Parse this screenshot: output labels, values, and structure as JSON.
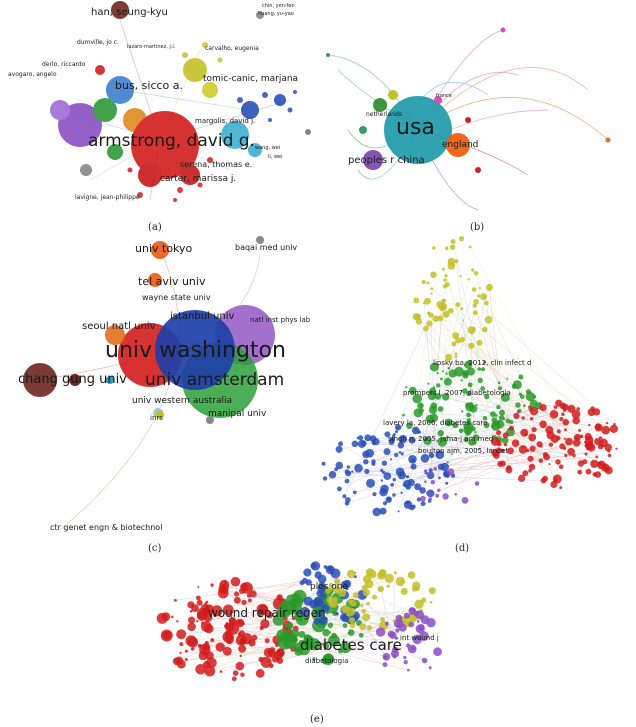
{
  "captions": {
    "a": "(a)",
    "b": "(b)",
    "c": "(c)",
    "d": "(d)",
    "e": "(e)"
  },
  "panel_a": {
    "labels": {
      "han": "han, seung-kyu",
      "chin": "chin, yen-fen",
      "huang": "huang, yu-yao",
      "dumville": "dumville, jo c.",
      "lazaro": "lazaro-martinez, j.l.",
      "carvalho": "carvalho, eugenia",
      "derlo": "derlo, riccardo",
      "avogaro": "avogaro, angelo",
      "bus": "bus, sicco a.",
      "tomic": "tomic-canic, marjana",
      "armstrong": "armstrong, david g.",
      "margolis": "margolis, david j.",
      "serena": "serena, thomas e.",
      "carter": "carter, marissa j.",
      "lavigne": "lavigne, jean-philippe",
      "wang": "wang, wei",
      "li": "li, wei"
    }
  },
  "panel_b": {
    "labels": {
      "usa": "usa",
      "england": "england",
      "peoples_china": "peoples r china",
      "netherlands": "netherlands",
      "france": "france"
    }
  },
  "panel_c": {
    "labels": {
      "tokyo": "univ tokyo",
      "baqai": "baqai med univ",
      "telaviv": "tel aviv univ",
      "wayne": "wayne state univ",
      "istanbul": "istanbul univ",
      "natl": "natl inst phys lab",
      "seoul": "seoul natl univ",
      "washington": "univ washington",
      "changgung": "chang gung univ",
      "amsterdam": "univ amsterdam",
      "western": "univ western australia",
      "manipal": "manipal univ",
      "inrs": "inrs",
      "ctr": "ctr genet engn & biotechnol"
    }
  },
  "panel_d": {
    "labels": {
      "infect": "lipsky ba, 2012, clin infect d",
      "prompers": "prompers l, 2007, diabetologia",
      "lavery": "lavery la, 2006, diabetes care",
      "singh": "singh n, 2005, jama-j am med",
      "boulton": "boulton ajm, 2005, lancet"
    }
  },
  "panel_e": {
    "labels": {
      "wound_repair": "wound repair regen",
      "diabetes_care": "diabetes care",
      "diabetologia": "diabetologia",
      "plos_one": "plos one",
      "int_wound": "int wound j"
    }
  }
}
